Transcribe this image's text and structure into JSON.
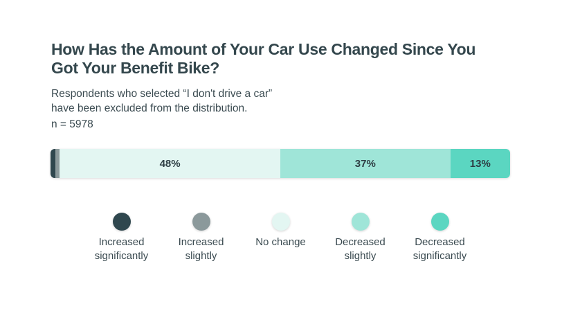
{
  "title_lines": [
    "How Has the Amount of Your Car Use Changed Since You",
    "Got Your Benefit Bike?"
  ],
  "subtitle_lines": [
    "Respondents who selected “I don't drive a car”",
    "have been excluded from the distribution."
  ],
  "n_label": "n = 5978",
  "chart_data": {
    "type": "bar",
    "orientation": "horizontal-stacked-100",
    "title": "How Has the Amount of Your Car Use Changed Since You Got Your Benefit Bike?",
    "series": [
      {
        "name": "Increased significantly",
        "value": 1,
        "label": "",
        "color": "#2f474e"
      },
      {
        "name": "Increased slightly",
        "value": 1,
        "label": "",
        "color": "#8b999b"
      },
      {
        "name": "No change",
        "value": 48,
        "label": "48%",
        "color": "#e3f6f2"
      },
      {
        "name": "Decreased slightly",
        "value": 37,
        "label": "37%",
        "color": "#9fe5d8"
      },
      {
        "name": "Decreased significantly",
        "value": 13,
        "label": "13%",
        "color": "#5bd6c1"
      }
    ],
    "legend": [
      {
        "lines": [
          "Increased",
          "significantly"
        ],
        "color": "#2f474e"
      },
      {
        "lines": [
          "Increased",
          "slightly"
        ],
        "color": "#8b999b"
      },
      {
        "lines": [
          "No change"
        ],
        "color": "#e3f6f2"
      },
      {
        "lines": [
          "Decreased",
          "slightly"
        ],
        "color": "#9fe5d8"
      },
      {
        "lines": [
          "Decreased",
          "significantly"
        ],
        "color": "#5bd6c1"
      }
    ],
    "legend_position": "bottom"
  }
}
